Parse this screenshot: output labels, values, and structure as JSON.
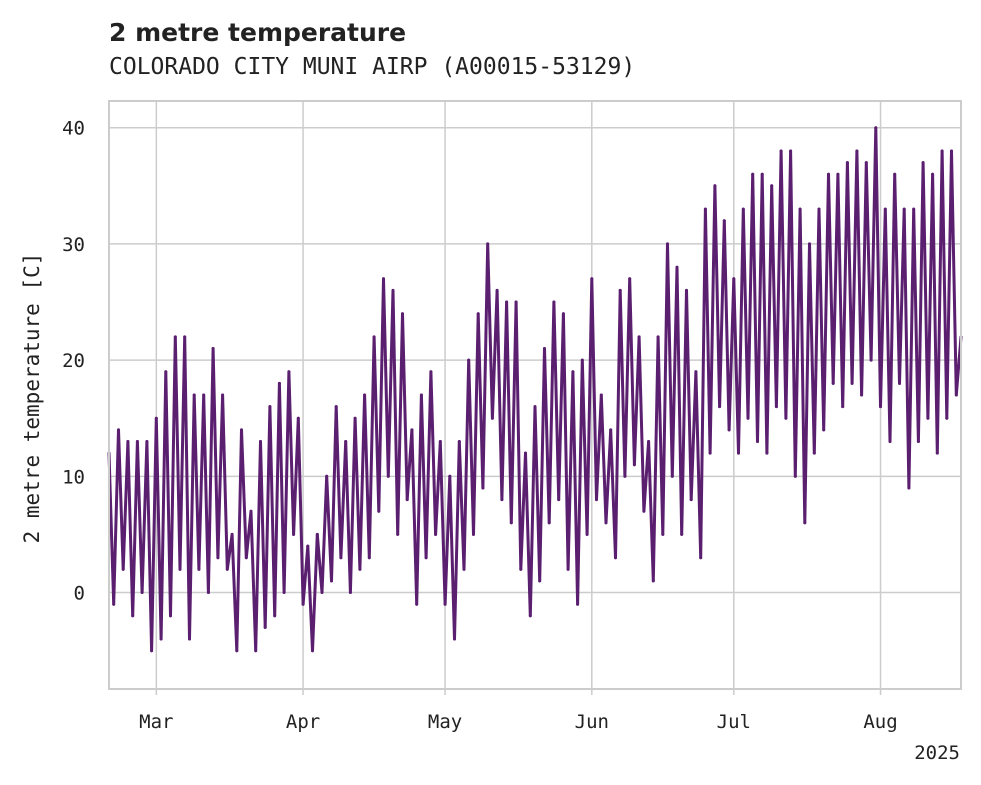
{
  "chart_data": {
    "type": "line",
    "title": "2 metre temperature",
    "subtitle": "COLORADO CITY MUNI AIRP (A00015-53129)",
    "xlabel": "",
    "ylabel": "2 metre temperature [C]",
    "year_label": "2025",
    "x_range": [
      "2025-02-19",
      "2025-08-18"
    ],
    "ylim": [
      -8.3,
      42.3
    ],
    "x_ticks": [
      {
        "date": "2025-03-01",
        "label": "Mar"
      },
      {
        "date": "2025-04-01",
        "label": "Apr"
      },
      {
        "date": "2025-05-01",
        "label": "May"
      },
      {
        "date": "2025-06-01",
        "label": "Jun"
      },
      {
        "date": "2025-07-01",
        "label": "Jul"
      },
      {
        "date": "2025-08-01",
        "label": "Aug"
      }
    ],
    "y_ticks": [
      0,
      10,
      20,
      30,
      40
    ],
    "grid": true,
    "line_color": "#5b1f70",
    "series": [
      {
        "name": "",
        "points": [
          [
            "2025-02-19",
            12
          ],
          [
            "2025-02-20",
            -1
          ],
          [
            "2025-02-21",
            14
          ],
          [
            "2025-02-22",
            2
          ],
          [
            "2025-02-23",
            13
          ],
          [
            "2025-02-24",
            -2
          ],
          [
            "2025-02-25",
            13
          ],
          [
            "2025-02-26",
            0
          ],
          [
            "2025-02-27",
            13
          ],
          [
            "2025-02-28",
            -5
          ],
          [
            "2025-03-01",
            15
          ],
          [
            "2025-03-02",
            -4
          ],
          [
            "2025-03-03",
            19
          ],
          [
            "2025-03-04",
            -2
          ],
          [
            "2025-03-05",
            22
          ],
          [
            "2025-03-06",
            2
          ],
          [
            "2025-03-07",
            22
          ],
          [
            "2025-03-08",
            -4
          ],
          [
            "2025-03-09",
            17
          ],
          [
            "2025-03-10",
            2
          ],
          [
            "2025-03-11",
            17
          ],
          [
            "2025-03-12",
            0
          ],
          [
            "2025-03-13",
            21
          ],
          [
            "2025-03-14",
            3
          ],
          [
            "2025-03-15",
            17
          ],
          [
            "2025-03-16",
            2
          ],
          [
            "2025-03-17",
            5
          ],
          [
            "2025-03-18",
            -5
          ],
          [
            "2025-03-19",
            14
          ],
          [
            "2025-03-20",
            3
          ],
          [
            "2025-03-21",
            7
          ],
          [
            "2025-03-22",
            -5
          ],
          [
            "2025-03-23",
            13
          ],
          [
            "2025-03-24",
            -3
          ],
          [
            "2025-03-25",
            16
          ],
          [
            "2025-03-26",
            -2
          ],
          [
            "2025-03-27",
            18
          ],
          [
            "2025-03-28",
            0
          ],
          [
            "2025-03-29",
            19
          ],
          [
            "2025-03-30",
            5
          ],
          [
            "2025-03-31",
            15
          ],
          [
            "2025-04-01",
            -1
          ],
          [
            "2025-04-02",
            4
          ],
          [
            "2025-04-03",
            -5
          ],
          [
            "2025-04-04",
            5
          ],
          [
            "2025-04-05",
            0
          ],
          [
            "2025-04-06",
            10
          ],
          [
            "2025-04-07",
            1
          ],
          [
            "2025-04-08",
            16
          ],
          [
            "2025-04-09",
            3
          ],
          [
            "2025-04-10",
            13
          ],
          [
            "2025-04-11",
            0
          ],
          [
            "2025-04-12",
            15
          ],
          [
            "2025-04-13",
            2
          ],
          [
            "2025-04-14",
            17
          ],
          [
            "2025-04-15",
            3
          ],
          [
            "2025-04-16",
            22
          ],
          [
            "2025-04-17",
            7
          ],
          [
            "2025-04-18",
            27
          ],
          [
            "2025-04-19",
            10
          ],
          [
            "2025-04-20",
            26
          ],
          [
            "2025-04-21",
            5
          ],
          [
            "2025-04-22",
            24
          ],
          [
            "2025-04-23",
            8
          ],
          [
            "2025-04-24",
            14
          ],
          [
            "2025-04-25",
            -1
          ],
          [
            "2025-04-26",
            17
          ],
          [
            "2025-04-27",
            3
          ],
          [
            "2025-04-28",
            19
          ],
          [
            "2025-04-29",
            5
          ],
          [
            "2025-04-30",
            13
          ],
          [
            "2025-05-01",
            -1
          ],
          [
            "2025-05-02",
            10
          ],
          [
            "2025-05-03",
            -4
          ],
          [
            "2025-05-04",
            13
          ],
          [
            "2025-05-05",
            2
          ],
          [
            "2025-05-06",
            20
          ],
          [
            "2025-05-07",
            5
          ],
          [
            "2025-05-08",
            24
          ],
          [
            "2025-05-09",
            9
          ],
          [
            "2025-05-10",
            30
          ],
          [
            "2025-05-11",
            15
          ],
          [
            "2025-05-12",
            26
          ],
          [
            "2025-05-13",
            8
          ],
          [
            "2025-05-14",
            25
          ],
          [
            "2025-05-15",
            6
          ],
          [
            "2025-05-16",
            25
          ],
          [
            "2025-05-17",
            2
          ],
          [
            "2025-05-18",
            12
          ],
          [
            "2025-05-19",
            -2
          ],
          [
            "2025-05-20",
            16
          ],
          [
            "2025-05-21",
            1
          ],
          [
            "2025-05-22",
            21
          ],
          [
            "2025-05-23",
            6
          ],
          [
            "2025-05-24",
            25
          ],
          [
            "2025-05-25",
            8
          ],
          [
            "2025-05-26",
            24
          ],
          [
            "2025-05-27",
            2
          ],
          [
            "2025-05-28",
            19
          ],
          [
            "2025-05-29",
            -1
          ],
          [
            "2025-05-30",
            20
          ],
          [
            "2025-05-31",
            5
          ],
          [
            "2025-06-01",
            27
          ],
          [
            "2025-06-02",
            8
          ],
          [
            "2025-06-03",
            17
          ],
          [
            "2025-06-04",
            6
          ],
          [
            "2025-06-05",
            14
          ],
          [
            "2025-06-06",
            3
          ],
          [
            "2025-06-07",
            26
          ],
          [
            "2025-06-08",
            10
          ],
          [
            "2025-06-09",
            27
          ],
          [
            "2025-06-10",
            11
          ],
          [
            "2025-06-11",
            22
          ],
          [
            "2025-06-12",
            7
          ],
          [
            "2025-06-13",
            13
          ],
          [
            "2025-06-14",
            1
          ],
          [
            "2025-06-15",
            22
          ],
          [
            "2025-06-16",
            5
          ],
          [
            "2025-06-17",
            30
          ],
          [
            "2025-06-18",
            10
          ],
          [
            "2025-06-19",
            28
          ],
          [
            "2025-06-20",
            5
          ],
          [
            "2025-06-21",
            26
          ],
          [
            "2025-06-22",
            8
          ],
          [
            "2025-06-23",
            19
          ],
          [
            "2025-06-24",
            3
          ],
          [
            "2025-06-25",
            33
          ],
          [
            "2025-06-26",
            12
          ],
          [
            "2025-06-27",
            35
          ],
          [
            "2025-06-28",
            16
          ],
          [
            "2025-06-29",
            32
          ],
          [
            "2025-06-30",
            14
          ],
          [
            "2025-07-01",
            27
          ],
          [
            "2025-07-02",
            12
          ],
          [
            "2025-07-03",
            33
          ],
          [
            "2025-07-04",
            15
          ],
          [
            "2025-07-05",
            36
          ],
          [
            "2025-07-06",
            13
          ],
          [
            "2025-07-07",
            36
          ],
          [
            "2025-07-08",
            12
          ],
          [
            "2025-07-09",
            35
          ],
          [
            "2025-07-10",
            16
          ],
          [
            "2025-07-11",
            38
          ],
          [
            "2025-07-12",
            15
          ],
          [
            "2025-07-13",
            38
          ],
          [
            "2025-07-14",
            10
          ],
          [
            "2025-07-15",
            33
          ],
          [
            "2025-07-16",
            6
          ],
          [
            "2025-07-17",
            30
          ],
          [
            "2025-07-18",
            12
          ],
          [
            "2025-07-19",
            33
          ],
          [
            "2025-07-20",
            14
          ],
          [
            "2025-07-21",
            36
          ],
          [
            "2025-07-22",
            18
          ],
          [
            "2025-07-23",
            36
          ],
          [
            "2025-07-24",
            16
          ],
          [
            "2025-07-25",
            37
          ],
          [
            "2025-07-26",
            18
          ],
          [
            "2025-07-27",
            38
          ],
          [
            "2025-07-28",
            17
          ],
          [
            "2025-07-29",
            37
          ],
          [
            "2025-07-30",
            20
          ],
          [
            "2025-07-31",
            40
          ],
          [
            "2025-08-01",
            16
          ],
          [
            "2025-08-02",
            33
          ],
          [
            "2025-08-03",
            13
          ],
          [
            "2025-08-04",
            36
          ],
          [
            "2025-08-05",
            18
          ],
          [
            "2025-08-06",
            33
          ],
          [
            "2025-08-07",
            9
          ],
          [
            "2025-08-08",
            33
          ],
          [
            "2025-08-09",
            13
          ],
          [
            "2025-08-10",
            37
          ],
          [
            "2025-08-11",
            15
          ],
          [
            "2025-08-12",
            36
          ],
          [
            "2025-08-13",
            12
          ],
          [
            "2025-08-14",
            38
          ],
          [
            "2025-08-15",
            15
          ],
          [
            "2025-08-16",
            38
          ],
          [
            "2025-08-17",
            17
          ],
          [
            "2025-08-18",
            22
          ]
        ]
      }
    ]
  }
}
